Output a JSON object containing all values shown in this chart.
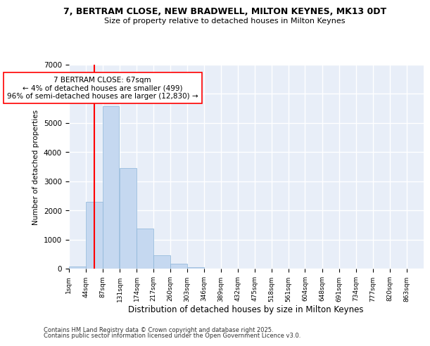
{
  "title": "7, BERTRAM CLOSE, NEW BRADWELL, MILTON KEYNES, MK13 0DT",
  "subtitle": "Size of property relative to detached houses in Milton Keynes",
  "xlabel": "Distribution of detached houses by size in Milton Keynes",
  "ylabel": "Number of detached properties",
  "bar_color": "#c5d8f0",
  "bar_edge_color": "#8ab4d8",
  "background_color": "#e8eef8",
  "grid_color": "#ffffff",
  "categories": [
    "1sqm",
    "44sqm",
    "87sqm",
    "131sqm",
    "174sqm",
    "217sqm",
    "260sqm",
    "303sqm",
    "346sqm",
    "389sqm",
    "432sqm",
    "475sqm",
    "518sqm",
    "561sqm",
    "604sqm",
    "648sqm",
    "691sqm",
    "734sqm",
    "777sqm",
    "820sqm",
    "863sqm"
  ],
  "values": [
    70,
    2300,
    5580,
    3450,
    1370,
    460,
    175,
    60,
    0,
    0,
    0,
    0,
    0,
    0,
    0,
    0,
    0,
    0,
    0,
    0,
    0
  ],
  "annotation_line1": "7 BERTRAM CLOSE: 67sqm",
  "annotation_line2": "← 4% of detached houses are smaller (499)",
  "annotation_line3": "96% of semi-detached houses are larger (12,830) →",
  "vline_x": 67,
  "ylim": [
    0,
    7000
  ],
  "yticks": [
    0,
    1000,
    2000,
    3000,
    4000,
    5000,
    6000,
    7000
  ],
  "footer1": "Contains HM Land Registry data © Crown copyright and database right 2025.",
  "footer2": "Contains public sector information licensed under the Open Government Licence v3.0."
}
